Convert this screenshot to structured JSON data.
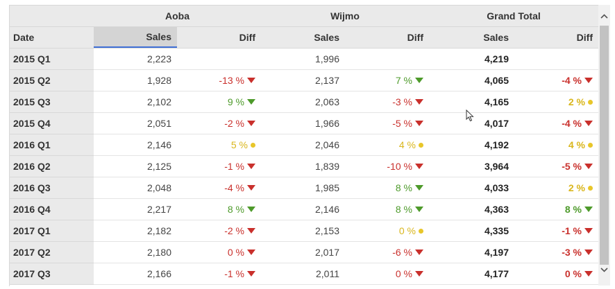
{
  "groups": [
    "",
    "Aoba",
    "Wijmo",
    "Grand Total"
  ],
  "columns": {
    "date": "Date",
    "aoba_sales": "Sales",
    "aoba_diff": "Diff",
    "wijmo_sales": "Sales",
    "wijmo_diff": "Diff",
    "total_sales": "Sales",
    "total_diff": "Diff"
  },
  "rows": [
    {
      "date": "2015 Q1",
      "aoba_sales": "2,223",
      "aoba_diff": "",
      "aoba_ind": "",
      "wijmo_sales": "1,996",
      "wijmo_diff": "",
      "wijmo_ind": "",
      "total_sales": "4,219",
      "total_diff": "",
      "total_ind": ""
    },
    {
      "date": "2015 Q2",
      "aoba_sales": "1,928",
      "aoba_diff": "-13 %",
      "aoba_ind": "red",
      "wijmo_sales": "2,137",
      "wijmo_diff": "7 %",
      "wijmo_ind": "green",
      "total_sales": "4,065",
      "total_diff": "-4 %",
      "total_ind": "red"
    },
    {
      "date": "2015 Q3",
      "aoba_sales": "2,102",
      "aoba_diff": "9 %",
      "aoba_ind": "green",
      "wijmo_sales": "2,063",
      "wijmo_diff": "-3 %",
      "wijmo_ind": "red",
      "total_sales": "4,165",
      "total_diff": "2 %",
      "total_ind": "yellow"
    },
    {
      "date": "2015 Q4",
      "aoba_sales": "2,051",
      "aoba_diff": "-2 %",
      "aoba_ind": "red",
      "wijmo_sales": "1,966",
      "wijmo_diff": "-5 %",
      "wijmo_ind": "red",
      "total_sales": "4,017",
      "total_diff": "-4 %",
      "total_ind": "red"
    },
    {
      "date": "2016 Q1",
      "aoba_sales": "2,146",
      "aoba_diff": "5 %",
      "aoba_ind": "yellow",
      "wijmo_sales": "2,046",
      "wijmo_diff": "4 %",
      "wijmo_ind": "yellow",
      "total_sales": "4,192",
      "total_diff": "4 %",
      "total_ind": "yellow"
    },
    {
      "date": "2016 Q2",
      "aoba_sales": "2,125",
      "aoba_diff": "-1 %",
      "aoba_ind": "red",
      "wijmo_sales": "1,839",
      "wijmo_diff": "-10 %",
      "wijmo_ind": "red",
      "total_sales": "3,964",
      "total_diff": "-5 %",
      "total_ind": "red"
    },
    {
      "date": "2016 Q3",
      "aoba_sales": "2,048",
      "aoba_diff": "-4 %",
      "aoba_ind": "red",
      "wijmo_sales": "1,985",
      "wijmo_diff": "8 %",
      "wijmo_ind": "green",
      "total_sales": "4,033",
      "total_diff": "2 %",
      "total_ind": "yellow"
    },
    {
      "date": "2016 Q4",
      "aoba_sales": "2,217",
      "aoba_diff": "8 %",
      "aoba_ind": "green",
      "wijmo_sales": "2,146",
      "wijmo_diff": "8 %",
      "wijmo_ind": "green",
      "total_sales": "4,363",
      "total_diff": "8 %",
      "total_ind": "green"
    },
    {
      "date": "2017 Q1",
      "aoba_sales": "2,182",
      "aoba_diff": "-2 %",
      "aoba_ind": "red",
      "wijmo_sales": "2,153",
      "wijmo_diff": "0 %",
      "wijmo_ind": "yellow",
      "total_sales": "4,335",
      "total_diff": "-1 %",
      "total_ind": "red"
    },
    {
      "date": "2017 Q2",
      "aoba_sales": "2,180",
      "aoba_diff": "0 %",
      "aoba_ind": "red",
      "wijmo_sales": "2,017",
      "wijmo_diff": "-6 %",
      "wijmo_ind": "red",
      "total_sales": "4,197",
      "total_diff": "-3 %",
      "total_ind": "red"
    },
    {
      "date": "2017 Q3",
      "aoba_sales": "2,166",
      "aoba_diff": "-1 %",
      "aoba_ind": "red",
      "wijmo_sales": "2,011",
      "wijmo_diff": "0 %",
      "wijmo_ind": "red",
      "total_sales": "4,177",
      "total_diff": "0 %",
      "total_ind": "red"
    }
  ],
  "colors": {
    "red": "#c9302c",
    "green": "#4d9a2a",
    "yellow": "#d9b61c",
    "sort_accent": "#3f6fd6"
  },
  "icons": {
    "scroll_up": "chevron-up-icon",
    "scroll_down": "chevron-down-icon",
    "cursor": "mouse-pointer-icon"
  }
}
